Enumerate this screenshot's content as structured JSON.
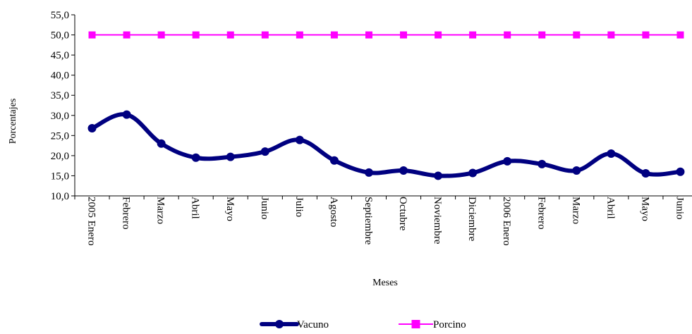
{
  "chart_data": {
    "type": "line",
    "title": "",
    "xlabel": "Meses",
    "ylabel": "Porcentajes",
    "ylim": [
      10.0,
      55.0
    ],
    "y_ticks": [
      "10,0",
      "15,0",
      "20,0",
      "25,0",
      "30,0",
      "35,0",
      "40,0",
      "45,0",
      "50,0",
      "55,0"
    ],
    "grid": false,
    "legend_position": "bottom",
    "categories": [
      "2005 Enero",
      "Febrero",
      "Marzo",
      "Abril",
      "Mayo",
      "Junio",
      "Julio",
      "Agosto",
      "Septiembre",
      "Octubre",
      "Noviembre",
      "Diciembre",
      "2006 Enero",
      "Febrero",
      "Marzo",
      "Abril",
      "Mayo",
      "Junio"
    ],
    "series": [
      {
        "name": "Vacuno",
        "color": "#000080",
        "marker": "circle",
        "values": [
          26.8,
          30.2,
          23.0,
          19.5,
          19.7,
          21.0,
          23.9,
          18.8,
          15.8,
          16.3,
          15.0,
          15.7,
          18.6,
          17.9,
          16.3,
          20.5,
          15.6,
          16.0
        ]
      },
      {
        "name": "Porcino",
        "color": "#FF00FF",
        "marker": "square",
        "values": [
          50.0,
          50.0,
          50.0,
          50.0,
          50.0,
          50.0,
          50.0,
          50.0,
          50.0,
          50.0,
          50.0,
          50.0,
          50.0,
          50.0,
          50.0,
          50.0,
          50.0,
          50.0
        ]
      }
    ]
  }
}
